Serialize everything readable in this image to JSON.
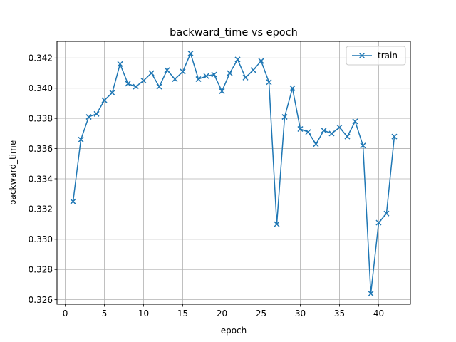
{
  "chart_data": {
    "type": "line",
    "title": "backward_time vs epoch",
    "xlabel": "epoch",
    "ylabel": "backward_time",
    "xlim": [
      -1.05,
      44.05
    ],
    "ylim": [
      0.3257,
      0.3431
    ],
    "x_ticks": [
      0,
      5,
      10,
      15,
      20,
      25,
      30,
      35,
      40
    ],
    "y_ticks": [
      0.326,
      0.328,
      0.33,
      0.332,
      0.334,
      0.336,
      0.338,
      0.34,
      0.342
    ],
    "grid": true,
    "legend": "top-right",
    "series": [
      {
        "name": "train",
        "color": "#1f77b4",
        "marker": "x",
        "x": [
          1,
          2,
          3,
          4,
          5,
          6,
          7,
          8,
          9,
          10,
          11,
          12,
          13,
          14,
          15,
          16,
          17,
          18,
          19,
          20,
          21,
          22,
          23,
          24,
          25,
          26,
          27,
          28,
          29,
          30,
          31,
          32,
          33,
          34,
          35,
          36,
          37,
          38,
          39,
          40,
          41,
          42
        ],
        "y": [
          0.3325,
          0.3366,
          0.3381,
          0.3383,
          0.3392,
          0.3397,
          0.3416,
          0.3403,
          0.3401,
          0.3405,
          0.341,
          0.3401,
          0.3412,
          0.3406,
          0.3411,
          0.3423,
          0.3406,
          0.3408,
          0.3409,
          0.3398,
          0.341,
          0.3419,
          0.3407,
          0.3412,
          0.3418,
          0.3404,
          0.331,
          0.3381,
          0.34,
          0.3373,
          0.3371,
          0.3363,
          0.3372,
          0.337,
          0.3374,
          0.3368,
          0.3378,
          0.3362,
          0.3264,
          0.3311,
          0.3317,
          0.3368
        ]
      }
    ]
  }
}
